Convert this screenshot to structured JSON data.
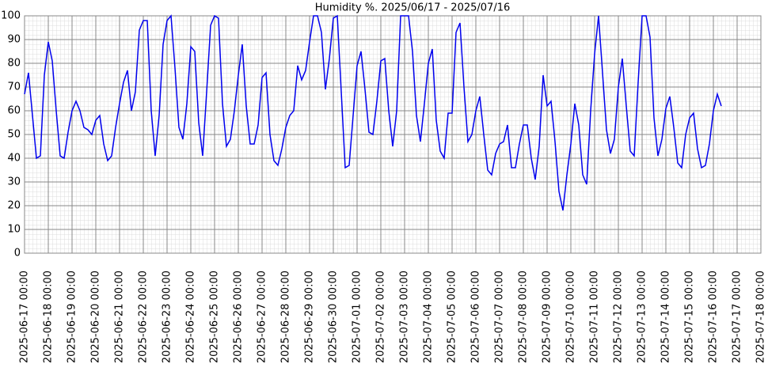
{
  "chart_data": {
    "type": "line",
    "title": "Humidity %. 2025/06/17 - 2025/07/16",
    "x": [
      "2025-06-17 00:00",
      "2025-06-17 04:00",
      "2025-06-17 08:00",
      "2025-06-17 12:00",
      "2025-06-17 16:00",
      "2025-06-17 20:00",
      "2025-06-18 00:00",
      "2025-06-18 04:00",
      "2025-06-18 08:00",
      "2025-06-18 12:00",
      "2025-06-18 16:00",
      "2025-06-18 20:00",
      "2025-06-19 00:00",
      "2025-06-19 04:00",
      "2025-06-19 08:00",
      "2025-06-19 12:00",
      "2025-06-19 16:00",
      "2025-06-19 20:00",
      "2025-06-20 00:00",
      "2025-06-20 04:00",
      "2025-06-20 08:00",
      "2025-06-20 12:00",
      "2025-06-20 16:00",
      "2025-06-20 20:00",
      "2025-06-21 00:00",
      "2025-06-21 04:00",
      "2025-06-21 08:00",
      "2025-06-21 12:00",
      "2025-06-21 16:00",
      "2025-06-21 20:00",
      "2025-06-22 00:00",
      "2025-06-22 04:00",
      "2025-06-22 08:00",
      "2025-06-22 12:00",
      "2025-06-22 16:00",
      "2025-06-22 20:00",
      "2025-06-23 00:00",
      "2025-06-23 04:00",
      "2025-06-23 08:00",
      "2025-06-23 12:00",
      "2025-06-23 16:00",
      "2025-06-23 20:00",
      "2025-06-24 00:00",
      "2025-06-24 04:00",
      "2025-06-24 08:00",
      "2025-06-24 12:00",
      "2025-06-24 16:00",
      "2025-06-24 20:00",
      "2025-06-25 00:00",
      "2025-06-25 04:00",
      "2025-06-25 08:00",
      "2025-06-25 12:00",
      "2025-06-25 16:00",
      "2025-06-25 20:00",
      "2025-06-26 00:00",
      "2025-06-26 04:00",
      "2025-06-26 08:00",
      "2025-06-26 12:00",
      "2025-06-26 16:00",
      "2025-06-26 20:00",
      "2025-06-27 00:00",
      "2025-06-27 04:00",
      "2025-06-27 08:00",
      "2025-06-27 12:00",
      "2025-06-27 16:00",
      "2025-06-27 20:00",
      "2025-06-28 00:00",
      "2025-06-28 04:00",
      "2025-06-28 08:00",
      "2025-06-28 12:00",
      "2025-06-28 16:00",
      "2025-06-28 20:00",
      "2025-06-29 00:00",
      "2025-06-29 04:00",
      "2025-06-29 08:00",
      "2025-06-29 12:00",
      "2025-06-29 16:00",
      "2025-06-29 20:00",
      "2025-06-30 00:00",
      "2025-06-30 04:00",
      "2025-06-30 08:00",
      "2025-06-30 12:00",
      "2025-06-30 16:00",
      "2025-06-30 20:00",
      "2025-07-01 00:00",
      "2025-07-01 04:00",
      "2025-07-01 08:00",
      "2025-07-01 12:00",
      "2025-07-01 16:00",
      "2025-07-01 20:00",
      "2025-07-02 00:00",
      "2025-07-02 04:00",
      "2025-07-02 08:00",
      "2025-07-02 12:00",
      "2025-07-02 16:00",
      "2025-07-02 20:00",
      "2025-07-03 00:00",
      "2025-07-03 04:00",
      "2025-07-03 08:00",
      "2025-07-03 12:00",
      "2025-07-03 16:00",
      "2025-07-03 20:00",
      "2025-07-04 00:00",
      "2025-07-04 04:00",
      "2025-07-04 08:00",
      "2025-07-04 12:00",
      "2025-07-04 16:00",
      "2025-07-04 20:00",
      "2025-07-05 00:00",
      "2025-07-05 04:00",
      "2025-07-05 08:00",
      "2025-07-05 12:00",
      "2025-07-05 16:00",
      "2025-07-05 20:00",
      "2025-07-06 00:00",
      "2025-07-06 04:00",
      "2025-07-06 08:00",
      "2025-07-06 12:00",
      "2025-07-06 16:00",
      "2025-07-06 20:00",
      "2025-07-07 00:00",
      "2025-07-07 04:00",
      "2025-07-07 08:00",
      "2025-07-07 12:00",
      "2025-07-07 16:00",
      "2025-07-07 20:00",
      "2025-07-08 00:00",
      "2025-07-08 04:00",
      "2025-07-08 08:00",
      "2025-07-08 12:00",
      "2025-07-08 16:00",
      "2025-07-08 20:00",
      "2025-07-09 00:00",
      "2025-07-09 04:00",
      "2025-07-09 08:00",
      "2025-07-09 12:00",
      "2025-07-09 16:00",
      "2025-07-09 20:00",
      "2025-07-10 00:00",
      "2025-07-10 04:00",
      "2025-07-10 08:00",
      "2025-07-10 12:00",
      "2025-07-10 16:00",
      "2025-07-10 20:00",
      "2025-07-11 00:00",
      "2025-07-11 04:00",
      "2025-07-11 08:00",
      "2025-07-11 12:00",
      "2025-07-11 16:00",
      "2025-07-11 20:00",
      "2025-07-12 00:00",
      "2025-07-12 04:00",
      "2025-07-12 08:00",
      "2025-07-12 12:00",
      "2025-07-12 16:00",
      "2025-07-12 20:00",
      "2025-07-13 00:00",
      "2025-07-13 04:00",
      "2025-07-13 08:00",
      "2025-07-13 12:00",
      "2025-07-13 16:00",
      "2025-07-13 20:00",
      "2025-07-14 00:00",
      "2025-07-14 04:00",
      "2025-07-14 08:00",
      "2025-07-14 12:00",
      "2025-07-14 16:00",
      "2025-07-14 20:00",
      "2025-07-15 00:00",
      "2025-07-15 04:00",
      "2025-07-15 08:00",
      "2025-07-15 12:00",
      "2025-07-15 16:00",
      "2025-07-15 20:00",
      "2025-07-16 00:00",
      "2025-07-16 04:00",
      "2025-07-16 08:00"
    ],
    "series": [
      {
        "color": "#0000ee",
        "values": [
          67,
          76,
          58,
          40,
          41,
          75,
          89,
          81,
          60,
          41,
          40,
          51,
          60,
          64,
          60,
          53,
          52,
          50,
          56,
          58,
          46,
          39,
          41,
          53,
          63,
          72,
          77,
          60,
          68,
          94,
          98,
          98,
          60,
          41,
          58,
          88,
          98,
          100,
          78,
          53,
          48,
          63,
          87,
          85,
          55,
          41,
          68,
          96,
          100,
          99,
          63,
          45,
          48,
          60,
          75,
          88,
          62,
          46,
          46,
          54,
          74,
          76,
          50,
          39,
          37,
          44,
          53,
          58,
          60,
          79,
          73,
          77,
          89,
          100,
          100,
          93,
          69,
          82,
          99,
          100,
          68,
          36,
          37,
          58,
          79,
          85,
          69,
          51,
          50,
          64,
          81,
          82,
          60,
          45,
          60,
          100,
          100,
          100,
          85,
          58,
          47,
          63,
          80,
          86,
          56,
          43,
          40,
          59,
          59,
          93,
          97,
          70,
          47,
          50,
          60,
          66,
          50,
          35,
          33,
          42,
          46,
          47,
          54,
          36,
          36,
          46,
          54,
          54,
          40,
          31,
          45,
          75,
          62,
          64,
          47,
          26,
          18,
          33,
          46,
          63,
          54,
          33,
          29,
          60,
          84,
          100,
          76,
          52,
          42,
          48,
          70,
          82,
          62,
          43,
          41,
          72,
          100,
          100,
          91,
          57,
          41,
          48,
          61,
          66,
          53,
          38,
          36,
          50,
          57,
          59,
          44,
          36,
          37,
          46,
          60,
          67,
          62
        ]
      }
    ],
    "xlim": [
      "2025-06-17 00:00",
      "2025-07-18 00:00"
    ],
    "xticks": [
      "2025-06-17 00:00",
      "2025-06-18 00:00",
      "2025-06-19 00:00",
      "2025-06-20 00:00",
      "2025-06-21 00:00",
      "2025-06-22 00:00",
      "2025-06-23 00:00",
      "2025-06-24 00:00",
      "2025-06-25 00:00",
      "2025-06-26 00:00",
      "2025-06-27 00:00",
      "2025-06-28 00:00",
      "2025-06-29 00:00",
      "2025-06-30 00:00",
      "2025-07-01 00:00",
      "2025-07-02 00:00",
      "2025-07-03 00:00",
      "2025-07-04 00:00",
      "2025-07-05 00:00",
      "2025-07-06 00:00",
      "2025-07-07 00:00",
      "2025-07-08 00:00",
      "2025-07-09 00:00",
      "2025-07-10 00:00",
      "2025-07-11 00:00",
      "2025-07-12 00:00",
      "2025-07-13 00:00",
      "2025-07-14 00:00",
      "2025-07-15 00:00",
      "2025-07-16 00:00",
      "2025-07-17 00:00",
      "2025-07-18 00:00"
    ],
    "ylim": [
      0,
      100
    ],
    "yticks": [
      0,
      10,
      20,
      30,
      40,
      50,
      60,
      70,
      80,
      90,
      100
    ],
    "grid": true
  }
}
